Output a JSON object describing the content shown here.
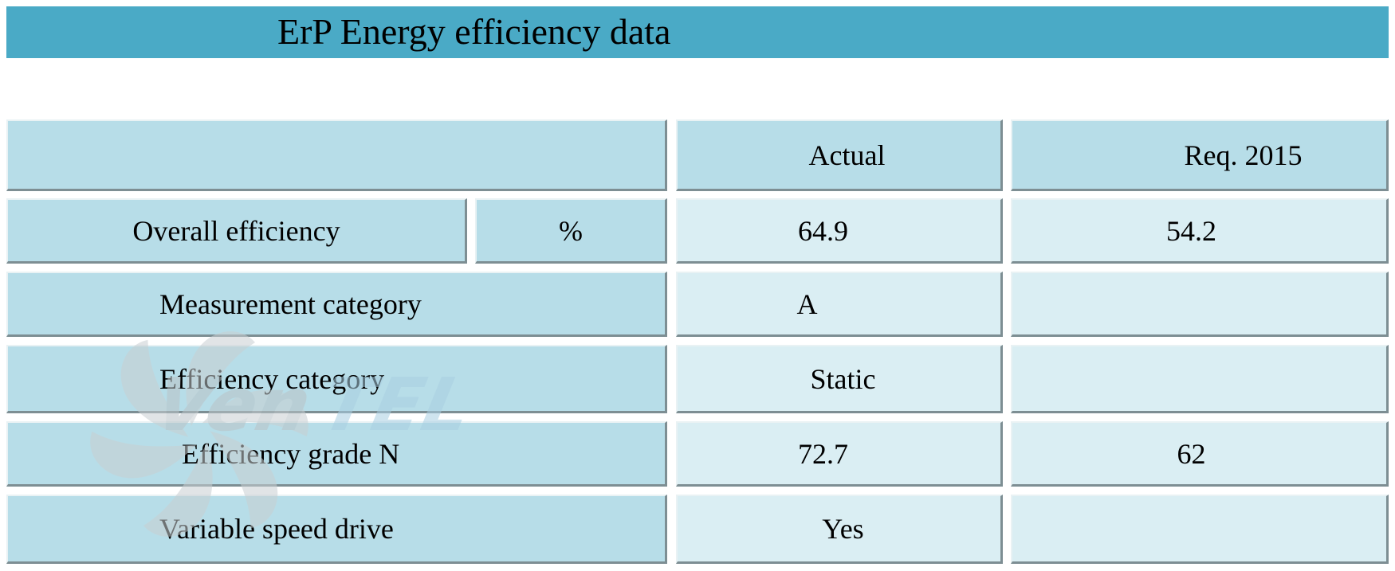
{
  "title": "ErP Energy efficiency data",
  "logo_text": "VenTEL",
  "header": {
    "col_actual": "Actual",
    "col_req": "Req. 2015"
  },
  "rows": [
    {
      "label": "Overall efficiency",
      "unit": "%",
      "actual": "64.9",
      "req": "54.2"
    },
    {
      "label": "Measurement category",
      "actual": "A",
      "req": ""
    },
    {
      "label": "Efficiency category",
      "actual": "Static",
      "req": ""
    },
    {
      "label": "Efficiency grade N",
      "actual": "72.7",
      "req": "62"
    },
    {
      "label": "Variable speed drive",
      "actual": "Yes",
      "req": ""
    }
  ],
  "colors": {
    "title_bar": "#4aaac6",
    "cell_dark": "#b7dde8",
    "cell_light": "#daeef3"
  }
}
